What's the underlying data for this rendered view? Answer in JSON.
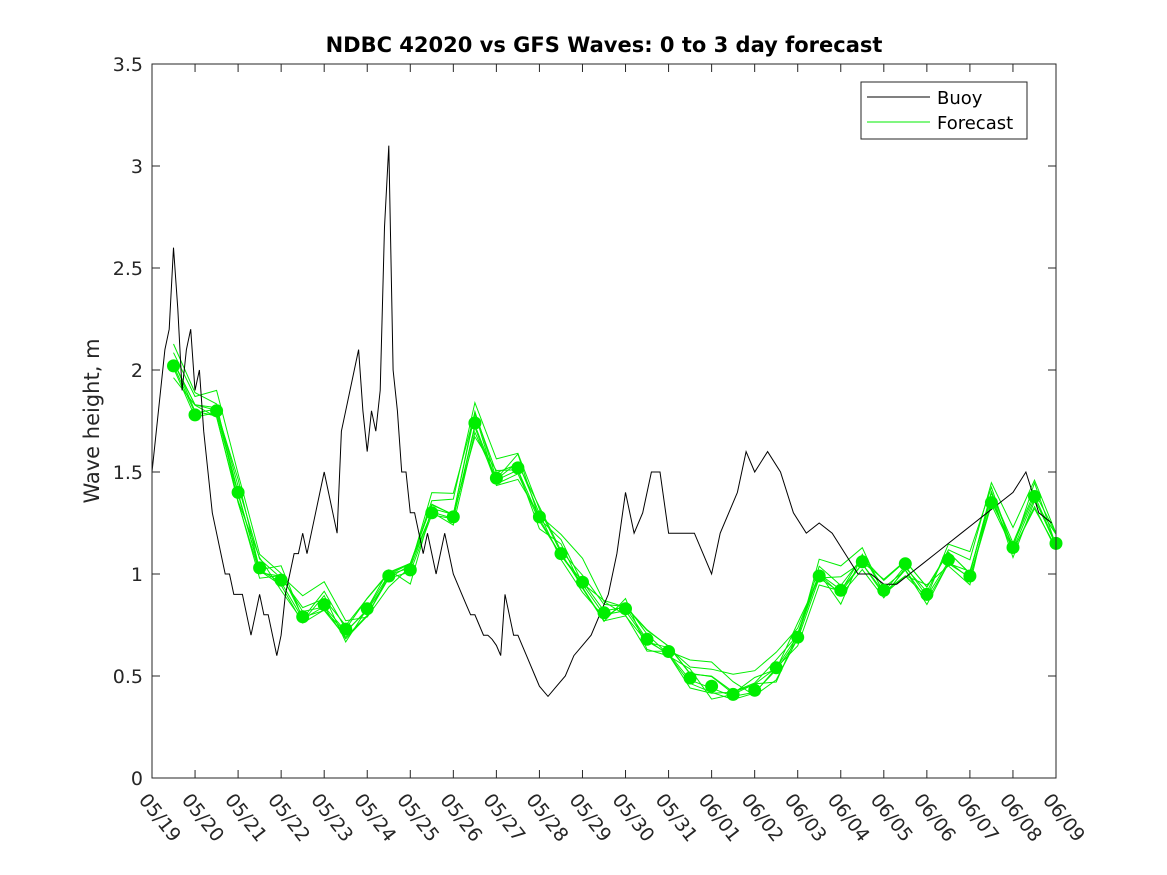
{
  "chart_data": {
    "type": "line",
    "title": "NDBC 42020 vs GFS Waves: 0 to 3 day forecast",
    "xlabel": "",
    "ylabel": "Wave height, m",
    "xlim": [
      "05/19",
      "06/09"
    ],
    "ylim": [
      0,
      3.5
    ],
    "x_ticks": [
      "05/19",
      "05/20",
      "05/21",
      "05/22",
      "05/23",
      "05/24",
      "05/25",
      "05/26",
      "05/27",
      "05/28",
      "05/29",
      "05/30",
      "05/31",
      "06/01",
      "06/02",
      "06/03",
      "06/04",
      "06/05",
      "06/06",
      "06/07",
      "06/08",
      "06/09"
    ],
    "y_ticks": [
      "0",
      "0.5",
      "1",
      "1.5",
      "2",
      "2.5",
      "3",
      "3.5"
    ],
    "grid": false,
    "legend": {
      "position": "top-right",
      "entries": [
        "Buoy",
        "Forecast"
      ]
    },
    "colors": {
      "buoy": "#000000",
      "forecast": "#00ee00",
      "markers": "#00ee00"
    },
    "series": [
      {
        "name": "Buoy",
        "x": [
          0.0,
          0.1,
          0.2,
          0.3,
          0.4,
          0.5,
          0.6,
          0.7,
          0.8,
          0.9,
          1.0,
          1.1,
          1.2,
          1.3,
          1.4,
          1.5,
          1.6,
          1.7,
          1.8,
          1.9,
          2.0,
          2.1,
          2.2,
          2.3,
          2.4,
          2.5,
          2.6,
          2.7,
          2.8,
          2.9,
          3.0,
          3.1,
          3.2,
          3.3,
          3.4,
          3.5,
          3.6,
          3.7,
          3.8,
          3.9,
          4.0,
          4.1,
          4.2,
          4.3,
          4.4,
          4.5,
          4.6,
          4.7,
          4.8,
          4.9,
          5.0,
          5.1,
          5.2,
          5.3,
          5.4,
          5.5,
          5.6,
          5.7,
          5.8,
          5.9,
          6.0,
          6.1,
          6.2,
          6.3,
          6.4,
          6.5,
          6.6,
          6.7,
          6.8,
          6.9,
          7.0,
          7.1,
          7.2,
          7.3,
          7.4,
          7.5,
          7.6,
          7.7,
          7.8,
          7.9,
          8.0,
          8.1,
          8.2,
          8.3,
          8.4,
          8.5,
          8.6,
          8.7,
          8.8,
          8.9,
          9.0,
          9.2,
          9.4,
          9.6,
          9.8,
          10.0,
          10.2,
          10.4,
          10.6,
          10.8,
          11.0,
          11.2,
          11.4,
          11.6,
          11.8,
          12.0,
          12.2,
          12.4,
          12.6,
          12.8,
          13.0,
          13.2,
          13.4,
          13.6,
          13.8,
          14.0,
          14.3,
          14.6,
          14.9,
          15.2,
          15.5,
          15.8,
          16.1,
          16.4,
          16.7,
          17.0,
          17.3,
          17.6,
          17.9,
          18.2,
          18.5,
          18.8,
          19.1,
          19.4,
          19.7,
          20.0,
          20.3,
          20.6,
          20.9
        ],
        "values": [
          1.5,
          1.7,
          1.9,
          2.1,
          2.2,
          2.6,
          2.3,
          1.9,
          2.1,
          2.2,
          1.9,
          2.0,
          1.7,
          1.5,
          1.3,
          1.2,
          1.1,
          1.0,
          1.0,
          0.9,
          0.9,
          0.9,
          0.8,
          0.7,
          0.8,
          0.9,
          0.8,
          0.8,
          0.7,
          0.6,
          0.7,
          0.9,
          1.0,
          1.1,
          1.1,
          1.2,
          1.1,
          1.2,
          1.3,
          1.4,
          1.5,
          1.4,
          1.3,
          1.2,
          1.7,
          1.8,
          1.9,
          2.0,
          2.1,
          1.8,
          1.6,
          1.8,
          1.7,
          1.9,
          2.7,
          3.1,
          2.0,
          1.8,
          1.5,
          1.5,
          1.3,
          1.3,
          1.2,
          1.1,
          1.2,
          1.1,
          1.0,
          1.1,
          1.2,
          1.1,
          1.0,
          0.95,
          0.9,
          0.85,
          0.8,
          0.8,
          0.75,
          0.7,
          0.7,
          0.68,
          0.65,
          0.6,
          0.9,
          0.8,
          0.7,
          0.7,
          0.65,
          0.6,
          0.55,
          0.5,
          0.45,
          0.4,
          0.45,
          0.5,
          0.6,
          0.65,
          0.7,
          0.8,
          0.9,
          1.1,
          1.4,
          1.2,
          1.3,
          1.5,
          1.5,
          1.2,
          1.2,
          1.2,
          1.2,
          1.1,
          1.0,
          1.2,
          1.3,
          1.4,
          1.6,
          1.5,
          1.6,
          1.5,
          1.3,
          1.2,
          1.25,
          1.2,
          1.1,
          1.0,
          1.0,
          0.95,
          0.95,
          1.0,
          1.05,
          1.1,
          1.15,
          1.2,
          1.25,
          1.3,
          1.35,
          1.4,
          1.5,
          1.3,
          1.25
        ]
      },
      {
        "name": "Forecast",
        "x": [
          0.5,
          1.0,
          1.5,
          2.0,
          2.5,
          3.0,
          3.5,
          4.0,
          4.5,
          5.0,
          5.5,
          6.0,
          6.5,
          7.0,
          7.5,
          8.0,
          8.5,
          9.0,
          9.5,
          10.0,
          10.5,
          11.0,
          11.5,
          12.0,
          12.5,
          13.0,
          13.5,
          14.0,
          14.5,
          15.0,
          15.5,
          16.0,
          16.5,
          17.0,
          17.5,
          18.0,
          18.5,
          19.0,
          19.5,
          20.0,
          20.5,
          21.0
        ],
        "values": [
          2.02,
          1.78,
          1.8,
          1.4,
          1.03,
          0.97,
          0.79,
          0.85,
          0.73,
          0.83,
          0.99,
          1.02,
          1.3,
          1.28,
          1.74,
          1.47,
          1.52,
          1.28,
          1.1,
          0.96,
          0.81,
          0.83,
          0.68,
          0.62,
          0.49,
          0.45,
          0.41,
          0.43,
          0.54,
          0.69,
          0.99,
          0.92,
          1.06,
          0.92,
          1.05,
          0.9,
          1.07,
          0.99,
          1.35,
          1.13,
          1.38,
          1.15
        ]
      }
    ]
  }
}
